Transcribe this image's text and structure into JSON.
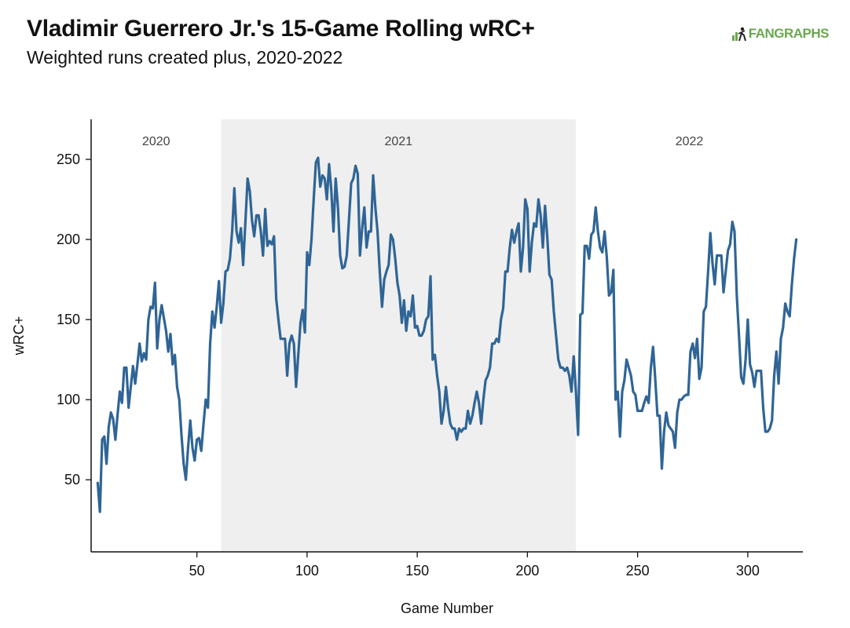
{
  "header": {
    "title": "Vladimir Guerrero Jr.'s 15-Game Rolling wRC+",
    "subtitle": "Weighted runs created plus, 2020-2022"
  },
  "logo": {
    "text": "FANGRAPHS",
    "color": "#6aa84f"
  },
  "chart_data": {
    "type": "line",
    "title": "Vladimir Guerrero Jr.'s 15-Game Rolling wRC+",
    "subtitle": "Weighted runs created plus, 2020-2022",
    "xlabel": "Game Number",
    "ylabel": "wRC+",
    "xlim": [
      2,
      325
    ],
    "ylim": [
      5,
      275
    ],
    "xticks": [
      50,
      100,
      150,
      200,
      250,
      300
    ],
    "yticks": [
      50,
      100,
      150,
      200,
      250
    ],
    "grid": false,
    "line_color": "#2f6596",
    "shade_color": "#efefef",
    "seasons": [
      {
        "label": "2020",
        "start": 2,
        "end": 61,
        "shaded": false
      },
      {
        "label": "2021",
        "start": 61,
        "end": 222,
        "shaded": true
      },
      {
        "label": "2022",
        "start": 222,
        "end": 325,
        "shaded": false
      }
    ],
    "series": [
      {
        "x": [
          5,
          6,
          7,
          8,
          9,
          10,
          11,
          12,
          13,
          14,
          15,
          16,
          17,
          18,
          19,
          20,
          21,
          22,
          23,
          24,
          25,
          26,
          27,
          28,
          29,
          30,
          31,
          32,
          33,
          34,
          35,
          36,
          37,
          38,
          39,
          40,
          41,
          42,
          43,
          44,
          45,
          46,
          47,
          48,
          49,
          50,
          51,
          52,
          53,
          54,
          55,
          56,
          57,
          58,
          59,
          60,
          61,
          62,
          63,
          64,
          65,
          66,
          67,
          68,
          69,
          70,
          71,
          72,
          73,
          74,
          75,
          76,
          77,
          78,
          79,
          80,
          81,
          82,
          83,
          84,
          85,
          86,
          87,
          88,
          89,
          90,
          91,
          92,
          93,
          94,
          95,
          96,
          97,
          98,
          99,
          100,
          101,
          102,
          103,
          104,
          105,
          106,
          107,
          108,
          109,
          110,
          111,
          112,
          113,
          114,
          115,
          116,
          117,
          118,
          119,
          120,
          121,
          122,
          123,
          124,
          125,
          126,
          127,
          128,
          129,
          130,
          131,
          132,
          133,
          134,
          135,
          136,
          137,
          138,
          139,
          140,
          141,
          142,
          143,
          144,
          145,
          146,
          147,
          148,
          149,
          150,
          151,
          152,
          153,
          154,
          155,
          156,
          157,
          158,
          159,
          160,
          161,
          162,
          163,
          164,
          165,
          166,
          167,
          168,
          169,
          170,
          171,
          172,
          173,
          174,
          175,
          176,
          177,
          178,
          179,
          180,
          181,
          182,
          183,
          184,
          185,
          186,
          187,
          188,
          189,
          190,
          191,
          192,
          193,
          194,
          195,
          196,
          197,
          198,
          199,
          200,
          201,
          202,
          203,
          204,
          205,
          206,
          207,
          208,
          209,
          210,
          211,
          212,
          213,
          214,
          215,
          216,
          217,
          218,
          219,
          220,
          221,
          222,
          223,
          224,
          225,
          226,
          227,
          228,
          229,
          230,
          231,
          232,
          233,
          234,
          235,
          236,
          237,
          238,
          239,
          240,
          241,
          242,
          243,
          244,
          245,
          246,
          247,
          248,
          249,
          250,
          251,
          252,
          253,
          254,
          255,
          256,
          257,
          258,
          259,
          260,
          261,
          262,
          263,
          264,
          265,
          266,
          267,
          268,
          269,
          270,
          271,
          272,
          273,
          274,
          275,
          276,
          277,
          278,
          279,
          280,
          281,
          282,
          283,
          284,
          285,
          286,
          287,
          288,
          289,
          290,
          291,
          292,
          293,
          294,
          295,
          296,
          297,
          298,
          299,
          300,
          301,
          302,
          303,
          304,
          305,
          306,
          307,
          308,
          309,
          310,
          311,
          312,
          313,
          314,
          315,
          316,
          317,
          318,
          319,
          320,
          321,
          322
        ],
        "y": [
          48,
          30,
          75,
          77,
          60,
          83,
          92,
          88,
          75,
          91,
          105,
          98,
          120,
          120,
          95,
          108,
          121,
          110,
          122,
          135,
          124,
          129,
          125,
          150,
          158,
          157,
          173,
          132,
          150,
          159,
          151,
          143,
          130,
          141,
          122,
          128,
          108,
          100,
          78,
          60,
          50,
          70,
          87,
          70,
          62,
          75,
          76,
          68,
          85,
          100,
          95,
          135,
          155,
          145,
          158,
          174,
          148,
          160,
          180,
          181,
          188,
          205,
          232,
          205,
          198,
          207,
          184,
          210,
          238,
          230,
          212,
          202,
          215,
          215,
          205,
          190,
          219,
          196,
          199,
          197,
          202,
          163,
          150,
          138,
          138,
          138,
          115,
          135,
          140,
          135,
          108,
          128,
          148,
          156,
          142,
          192,
          184,
          200,
          225,
          248,
          251,
          233,
          240,
          238,
          225,
          247,
          231,
          205,
          238,
          220,
          190,
          182,
          183,
          190,
          212,
          235,
          238,
          246,
          241,
          190,
          207,
          220,
          195,
          205,
          205,
          240,
          220,
          205,
          180,
          158,
          175,
          180,
          184,
          203,
          200,
          188,
          173,
          165,
          148,
          162,
          143,
          155,
          152,
          165,
          145,
          146,
          140,
          140,
          143,
          150,
          152,
          177,
          125,
          128,
          115,
          105,
          85,
          93,
          108,
          95,
          85,
          82,
          82,
          75,
          82,
          80,
          82,
          82,
          93,
          85,
          90,
          98,
          105,
          98,
          85,
          100,
          112,
          115,
          120,
          135,
          135,
          138,
          136,
          150,
          157,
          180,
          180,
          195,
          206,
          198,
          205,
          210,
          180,
          195,
          225,
          219,
          180,
          198,
          210,
          208,
          225,
          215,
          195,
          221,
          202,
          178,
          175,
          155,
          140,
          125,
          120,
          120,
          118,
          120,
          115,
          105,
          127,
          105,
          78,
          153,
          154,
          196,
          196,
          188,
          203,
          205,
          220,
          205,
          195,
          192,
          205,
          189,
          165,
          167,
          181,
          100,
          105,
          77,
          105,
          112,
          125,
          120,
          115,
          105,
          103,
          93,
          93,
          93,
          98,
          102,
          98,
          120,
          133,
          113,
          90,
          90,
          57,
          80,
          92,
          84,
          82,
          80,
          70,
          92,
          100,
          100,
          102,
          103,
          103,
          130,
          135,
          126,
          138,
          113,
          120,
          155,
          158,
          180,
          204,
          185,
          172,
          190,
          190,
          190,
          167,
          180,
          193,
          197,
          211,
          205,
          165,
          140,
          114,
          110,
          125,
          150,
          122,
          117,
          108,
          118,
          118,
          118,
          95,
          80,
          80,
          82,
          87,
          115,
          130,
          110,
          138,
          145,
          160,
          155,
          152,
          172,
          188,
          200
        ]
      }
    ]
  }
}
